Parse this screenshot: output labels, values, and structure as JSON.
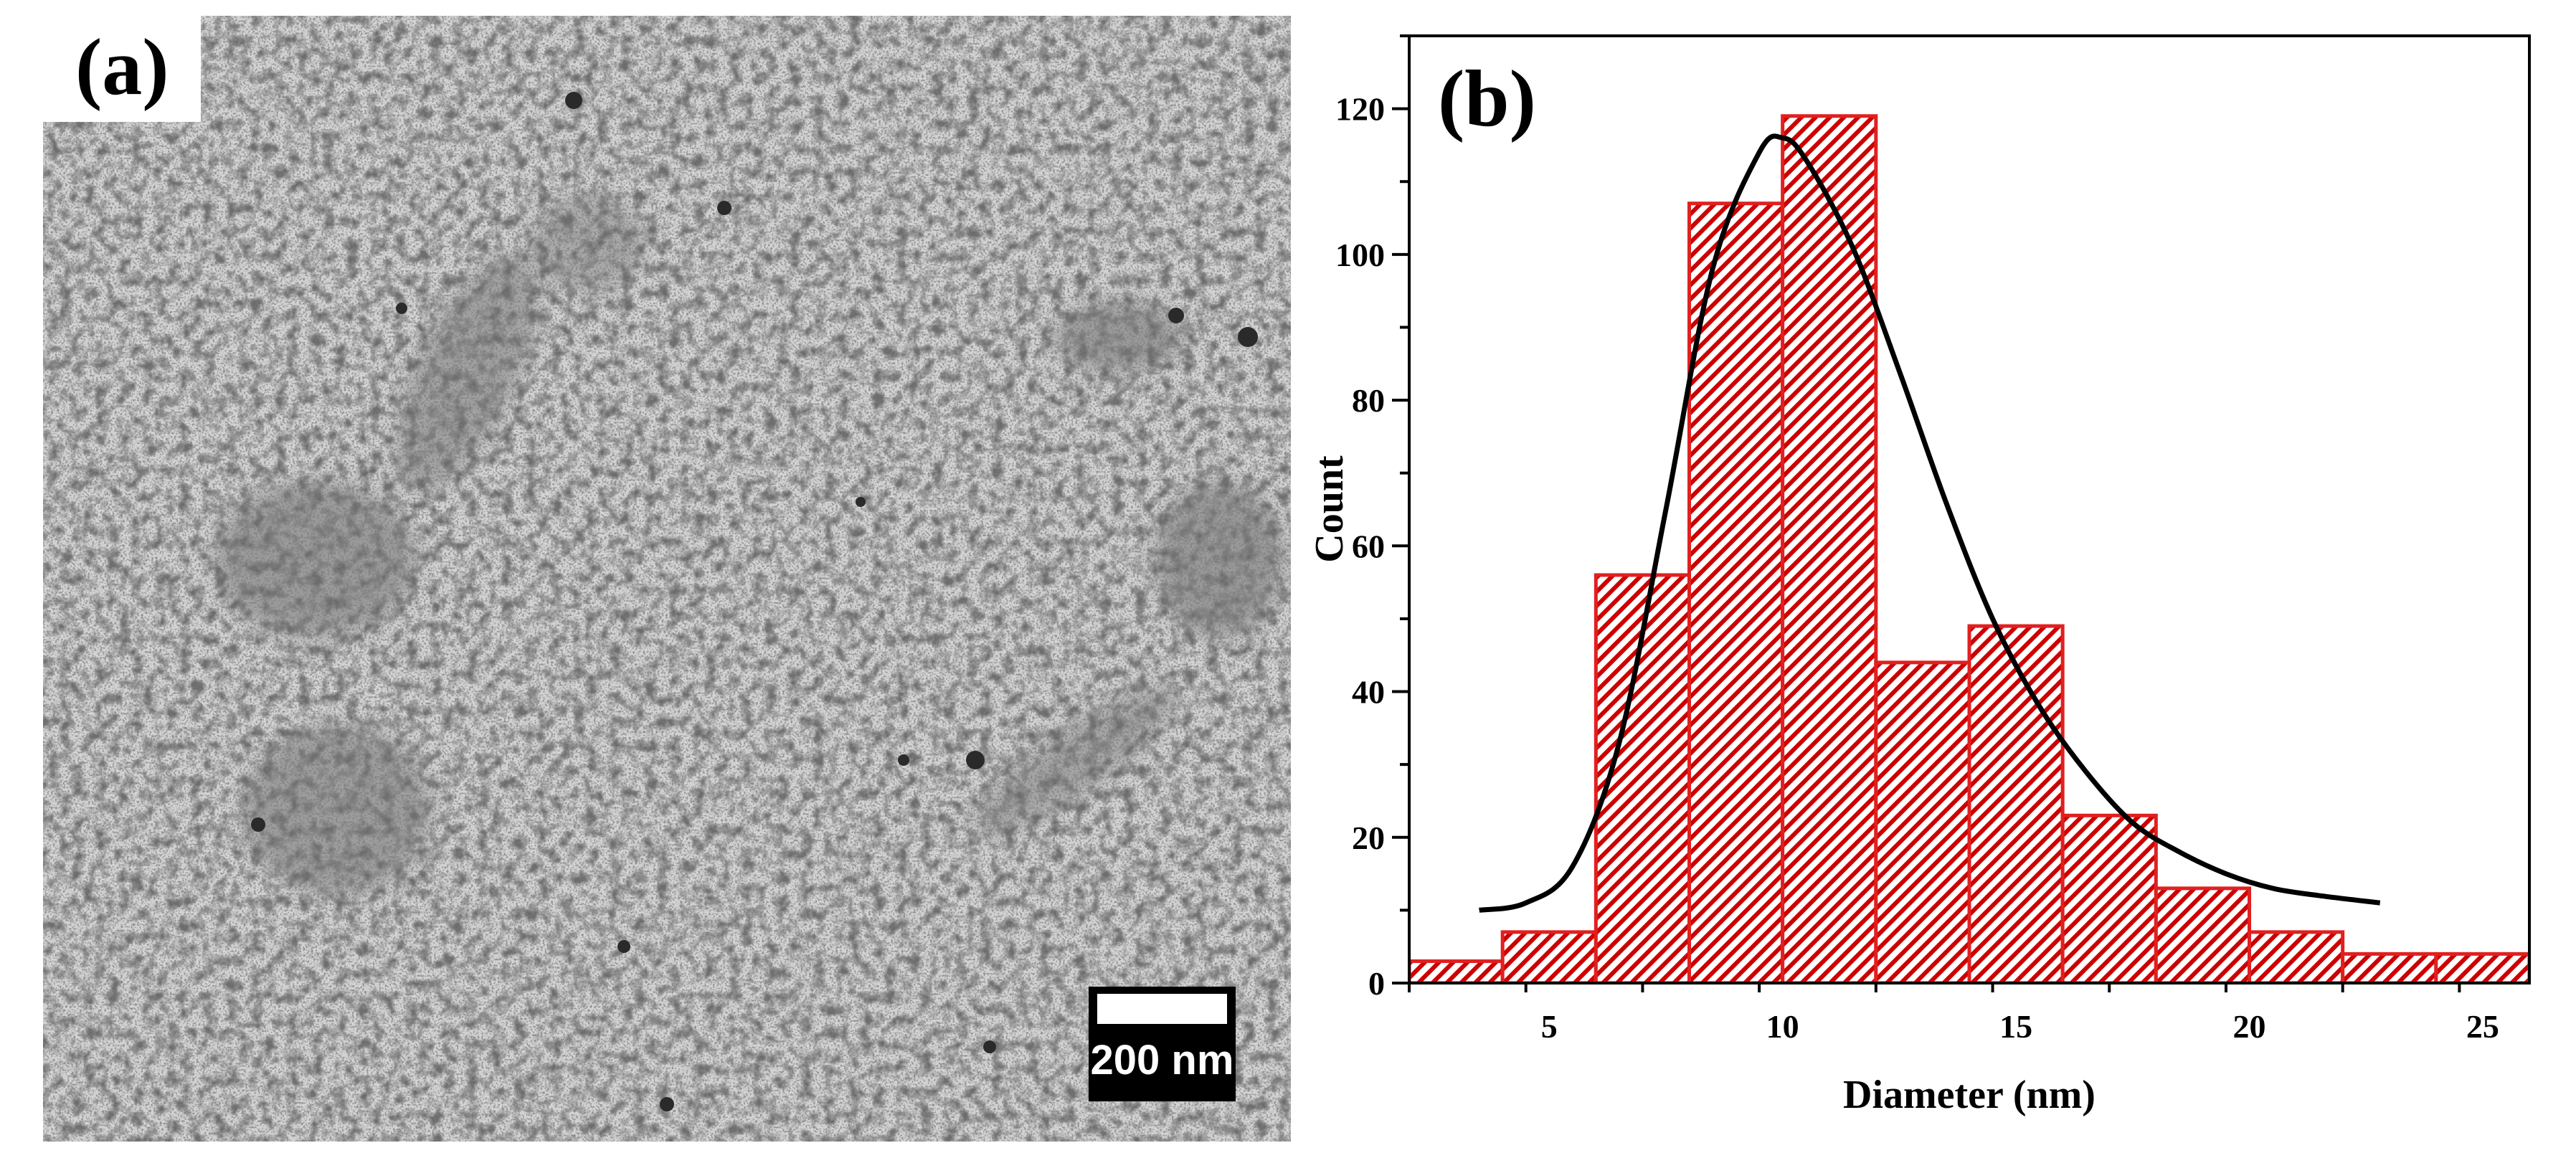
{
  "panels": {
    "a": {
      "label": "(a)",
      "scale_bar_label": "200 nm"
    },
    "b": {
      "label": "(b)"
    }
  },
  "chart_data": {
    "type": "bar",
    "xlabel": "Diameter (nm)",
    "ylabel": "Count",
    "xlim": [
      2,
      26
    ],
    "ylim": [
      0,
      130
    ],
    "x_ticks": [
      5,
      10,
      15,
      20,
      25
    ],
    "y_ticks": [
      0,
      20,
      40,
      60,
      80,
      100,
      120
    ],
    "bins": [
      {
        "x0": 2,
        "x1": 4,
        "count": 3
      },
      {
        "x0": 4,
        "x1": 6,
        "count": 7
      },
      {
        "x0": 6,
        "x1": 8,
        "count": 56
      },
      {
        "x0": 8,
        "x1": 10,
        "count": 107
      },
      {
        "x0": 10,
        "x1": 12,
        "count": 119
      },
      {
        "x0": 12,
        "x1": 14,
        "count": 44
      },
      {
        "x0": 14,
        "x1": 16,
        "count": 49
      },
      {
        "x0": 16,
        "x1": 18,
        "count": 23
      },
      {
        "x0": 18,
        "x1": 20,
        "count": 13
      },
      {
        "x0": 20,
        "x1": 22,
        "count": 7
      },
      {
        "x0": 22,
        "x1": 24,
        "count": 4
      },
      {
        "x0": 24,
        "x1": 26,
        "count": 4
      }
    ],
    "fit_curve": {
      "type": "lognormal",
      "x": [
        3.5,
        4.5,
        5.5,
        6.5,
        7.5,
        8.5,
        9.5,
        10,
        10.5,
        11.5,
        12.5,
        13.5,
        14.5,
        15.5,
        16.5,
        17.5,
        18.5,
        19.5,
        20.5,
        21.5,
        22.8
      ],
      "y": [
        10,
        11,
        16,
        33,
        65,
        98,
        114,
        116,
        113,
        101,
        84,
        66,
        50,
        38,
        29,
        22,
        18,
        15,
        13,
        12,
        11
      ]
    },
    "bar_fill": "#cc0000",
    "bar_edge": "#e02020",
    "curve_color": "#000000",
    "grid": false
  }
}
